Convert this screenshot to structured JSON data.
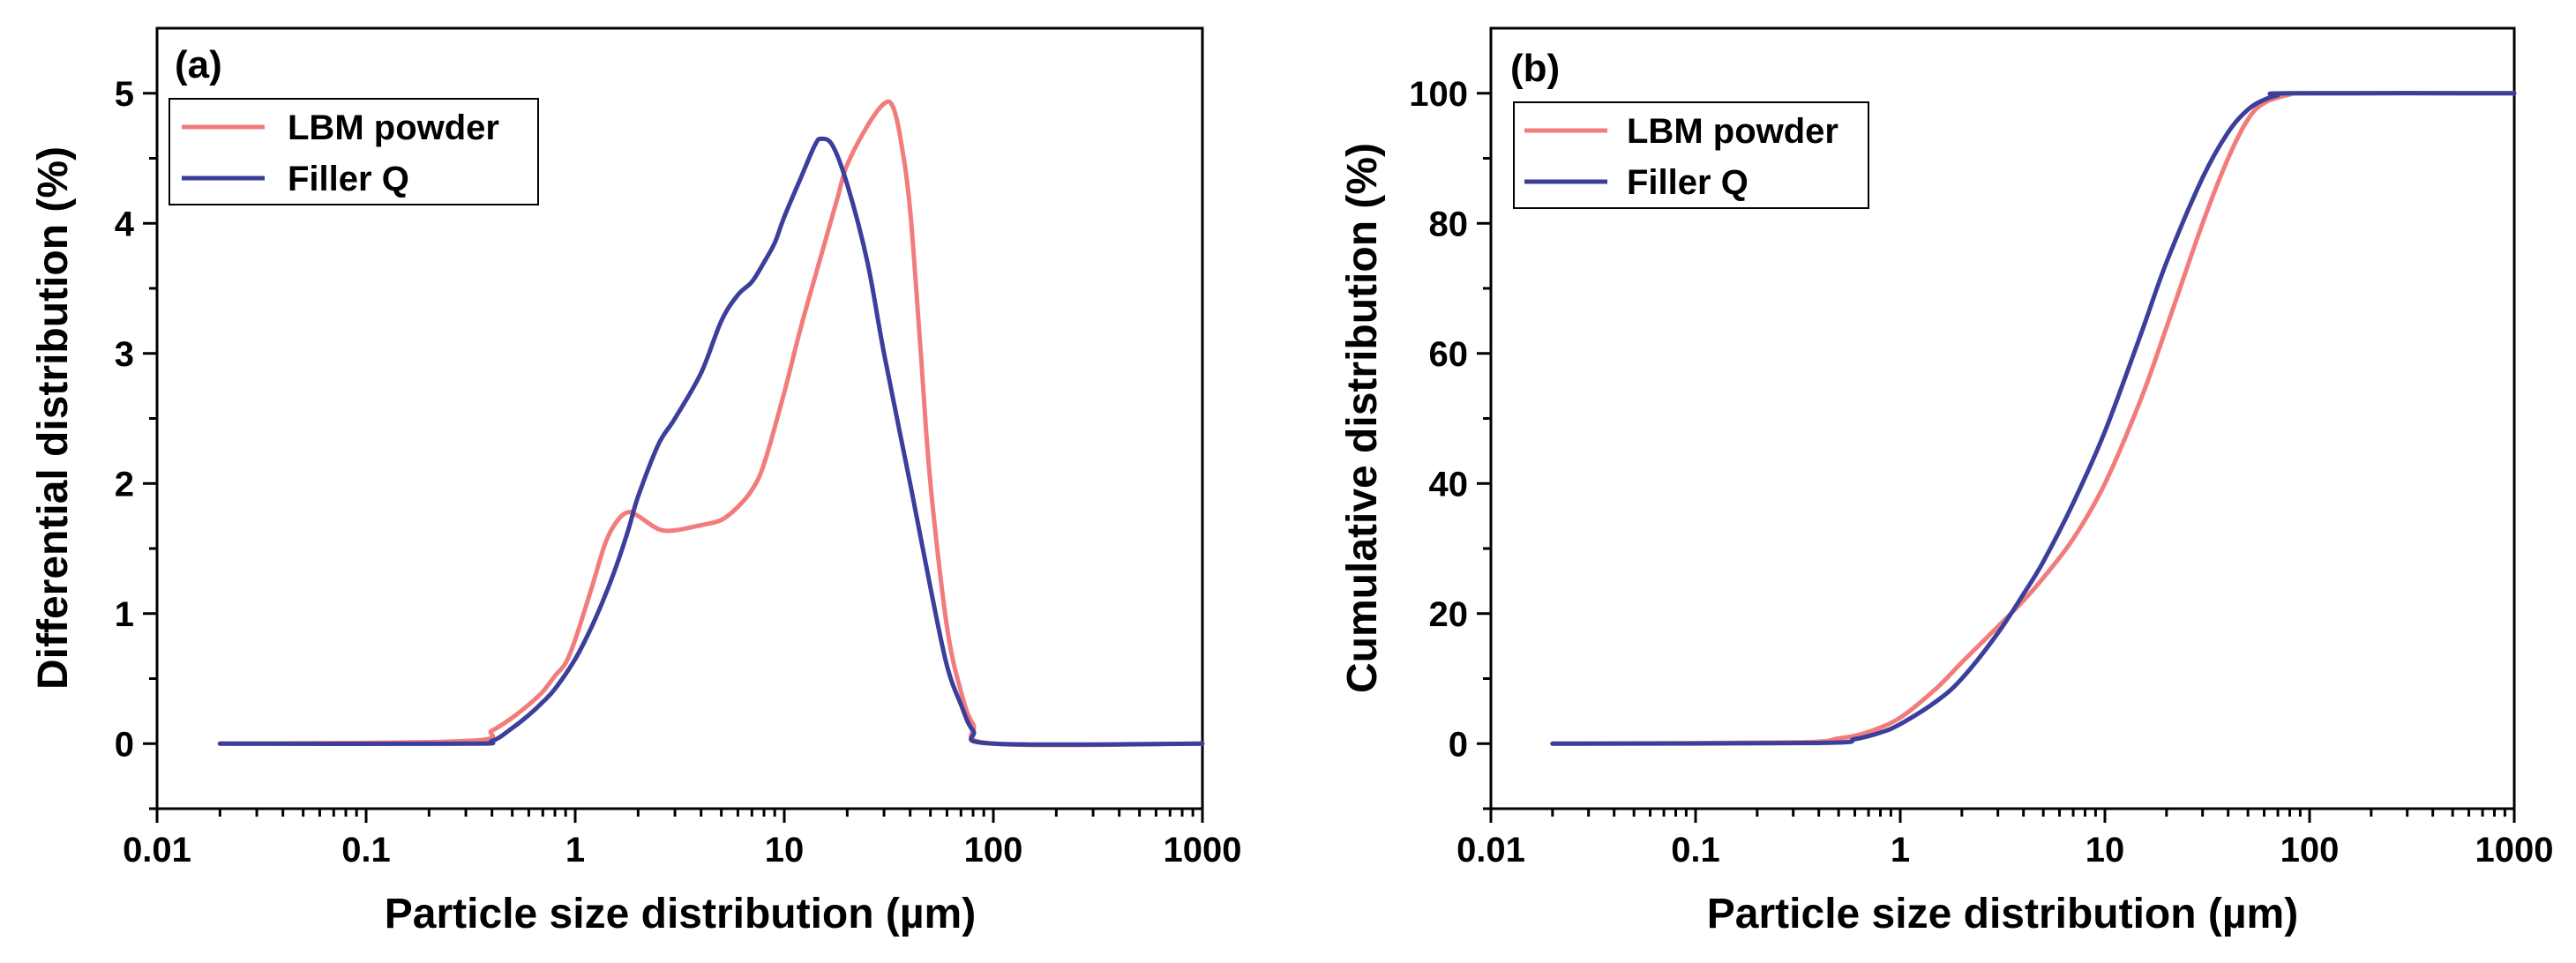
{
  "colors": {
    "lbm": "#F27C7C",
    "filler": "#3B3F9B",
    "axis": "#000000"
  },
  "chart_data": [
    {
      "type": "line",
      "panel_label": "(a)",
      "title": "",
      "xlabel": "Particle size distribution (µm)",
      "ylabel": "Differential distribution (%)",
      "xscale": "log",
      "xlim": [
        0.01,
        1000
      ],
      "ylim": [
        -0.5,
        5.5
      ],
      "xticks": [
        0.01,
        0.1,
        1,
        10,
        100,
        1000
      ],
      "xtick_labels": [
        "0.01",
        "0.1",
        "1",
        "10",
        "100",
        "1000"
      ],
      "yticks": [
        0,
        1,
        2,
        3,
        4,
        5
      ],
      "ytick_labels": [
        "0",
        "1",
        "2",
        "3",
        "4",
        "5"
      ],
      "legend": "top-left",
      "series": [
        {
          "name": "LBM powder",
          "color": "#F27C7C",
          "x": [
            0.02,
            0.3,
            0.4,
            0.5,
            0.6,
            0.7,
            0.8,
            0.9,
            1.0,
            1.2,
            1.4,
            1.6,
            1.8,
            2.0,
            2.5,
            3.0,
            4.0,
            5.0,
            6.0,
            7.0,
            8.0,
            10,
            12,
            15,
            18,
            20,
            25,
            30,
            33,
            36,
            40,
            45,
            50,
            60,
            70,
            80,
            100,
            1000
          ],
          "y": [
            0.0,
            0.02,
            0.1,
            0.2,
            0.3,
            0.4,
            0.52,
            0.62,
            0.8,
            1.2,
            1.55,
            1.72,
            1.78,
            1.75,
            1.65,
            1.64,
            1.68,
            1.72,
            1.82,
            1.95,
            2.15,
            2.7,
            3.2,
            3.75,
            4.2,
            4.45,
            4.75,
            4.92,
            4.9,
            4.65,
            4.1,
            3.0,
            2.0,
            0.9,
            0.4,
            0.15,
            0.0,
            0.0
          ]
        },
        {
          "name": "Filler Q",
          "color": "#3B3F9B",
          "x": [
            0.02,
            0.3,
            0.4,
            0.5,
            0.6,
            0.7,
            0.8,
            1.0,
            1.2,
            1.4,
            1.6,
            1.8,
            2.0,
            2.5,
            3.0,
            4.0,
            5.0,
            6.0,
            7.0,
            8.0,
            9.0,
            10,
            12,
            14,
            15,
            17,
            20,
            25,
            30,
            40,
            50,
            60,
            70,
            80,
            100,
            1000
          ],
          "y": [
            0.0,
            0.0,
            0.02,
            0.12,
            0.22,
            0.32,
            0.42,
            0.65,
            0.9,
            1.15,
            1.4,
            1.65,
            1.9,
            2.3,
            2.5,
            2.85,
            3.25,
            3.45,
            3.55,
            3.7,
            3.85,
            4.05,
            4.35,
            4.6,
            4.65,
            4.6,
            4.3,
            3.7,
            3.0,
            2.0,
            1.2,
            0.6,
            0.3,
            0.1,
            0.0,
            0.0
          ]
        }
      ]
    },
    {
      "type": "line",
      "panel_label": "(b)",
      "title": "",
      "xlabel": "Particle size distribution (µm)",
      "ylabel": "Cumulative distribution (%)",
      "xscale": "log",
      "xlim": [
        0.01,
        1000
      ],
      "ylim": [
        -10,
        110
      ],
      "xticks": [
        0.01,
        0.1,
        1,
        10,
        100,
        1000
      ],
      "xtick_labels": [
        "0.01",
        "0.1",
        "1",
        "10",
        "100",
        "1000"
      ],
      "yticks": [
        0,
        20,
        40,
        60,
        80,
        100
      ],
      "ytick_labels": [
        "0",
        "20",
        "40",
        "60",
        "80",
        "100"
      ],
      "legend": "top-left",
      "series": [
        {
          "name": "LBM powder",
          "color": "#F27C7C",
          "x": [
            0.02,
            0.3,
            0.5,
            0.7,
            1.0,
            1.5,
            2.0,
            3.0,
            4.0,
            5.0,
            7.0,
            10,
            15,
            20,
            30,
            40,
            50,
            60,
            80,
            100,
            1000
          ],
          "y": [
            0,
            0.2,
            0.8,
            1.8,
            4,
            8.5,
            12.5,
            18,
            22,
            25.5,
            31.5,
            40,
            53,
            64,
            80,
            90,
            96,
            98.5,
            99.8,
            100,
            100
          ]
        },
        {
          "name": "Filler Q",
          "color": "#3B3F9B",
          "x": [
            0.02,
            0.4,
            0.6,
            0.8,
            1.0,
            1.5,
            2.0,
            3.0,
            4.0,
            5.0,
            7.0,
            10,
            15,
            20,
            30,
            40,
            50,
            60,
            70,
            80,
            1000
          ],
          "y": [
            0,
            0.1,
            0.7,
            1.7,
            3,
            6.5,
            10,
            17,
            23,
            28,
            37,
            48,
            63,
            74,
            87,
            94,
            97.5,
            99,
            99.7,
            100,
            100
          ]
        }
      ]
    }
  ]
}
